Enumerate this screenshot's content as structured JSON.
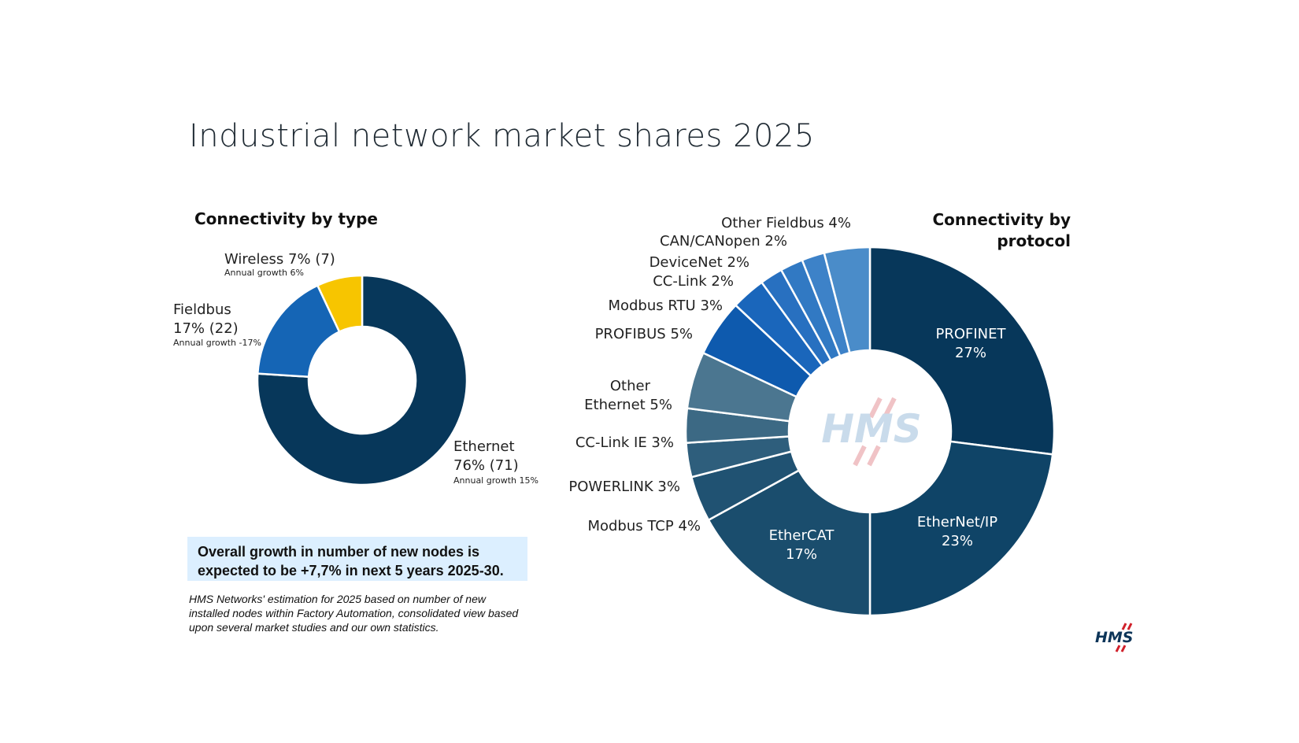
{
  "page": {
    "title": "Industrial network market shares 2025",
    "growth_note": "Overall growth in number of new nodes is expected to be +7,7% in next 5 years 2025-30.",
    "source_note": "HMS Networks' estimation for 2025 based on number of new installed nodes within Factory Automation, consolidated view based upon several market studies and our own statistics.",
    "watermark": "HMS",
    "logo": "HMS"
  },
  "chart_data": [
    {
      "type": "pie",
      "title": "Connectivity by type",
      "donut": true,
      "slices": [
        {
          "name": "Ethernet",
          "value": 76,
          "share_label": "76% (71)",
          "growth": "Annual growth 15%",
          "color": "#07375a"
        },
        {
          "name": "Fieldbus",
          "value": 17,
          "share_label": "17% (22)",
          "growth": "Annual growth -17%",
          "color": "#1565b5"
        },
        {
          "name": "Wireless",
          "value": 7,
          "share_label": "Wireless 7% (7)",
          "growth": "Annual growth 6%",
          "color": "#f7c500"
        }
      ]
    },
    {
      "type": "pie",
      "title": "Connectivity by protocol",
      "donut": true,
      "slices": [
        {
          "name": "PROFINET",
          "value": 27,
          "label": "27%",
          "color": "#07375a"
        },
        {
          "name": "EtherNet/IP",
          "value": 23,
          "label": "23%",
          "color": "#0f4467"
        },
        {
          "name": "EtherCAT",
          "value": 17,
          "label": "17%",
          "color": "#1a4d6d"
        },
        {
          "name": "Modbus TCP",
          "value": 4,
          "label": "Modbus TCP 4%",
          "color": "#205272"
        },
        {
          "name": "POWERLINK",
          "value": 3,
          "label": "POWERLINK 3%",
          "color": "#2e5e7c"
        },
        {
          "name": "CC-Link IE",
          "value": 3,
          "label": "CC-Link IE 3%",
          "color": "#3c6984"
        },
        {
          "name": "Other Ethernet",
          "value": 5,
          "label": "Other Ethernet 5%",
          "color": "#4b7690"
        },
        {
          "name": "PROFIBUS",
          "value": 5,
          "label": "PROFIBUS 5%",
          "color": "#0e5aae"
        },
        {
          "name": "Modbus RTU",
          "value": 3,
          "label": "Modbus RTU 3%",
          "color": "#1a66bb"
        },
        {
          "name": "CC-Link",
          "value": 2,
          "label": "CC-Link 2%",
          "color": "#2870c0"
        },
        {
          "name": "DeviceNet",
          "value": 2,
          "label": "DeviceNet 2%",
          "color": "#3179c3"
        },
        {
          "name": "CAN/CANopen",
          "value": 2,
          "label": "CAN/CANopen 2%",
          "color": "#3d82c8"
        },
        {
          "name": "Other Fieldbus",
          "value": 4,
          "label": "Other Fieldbus 4%",
          "color": "#4a8cc9"
        }
      ]
    }
  ]
}
